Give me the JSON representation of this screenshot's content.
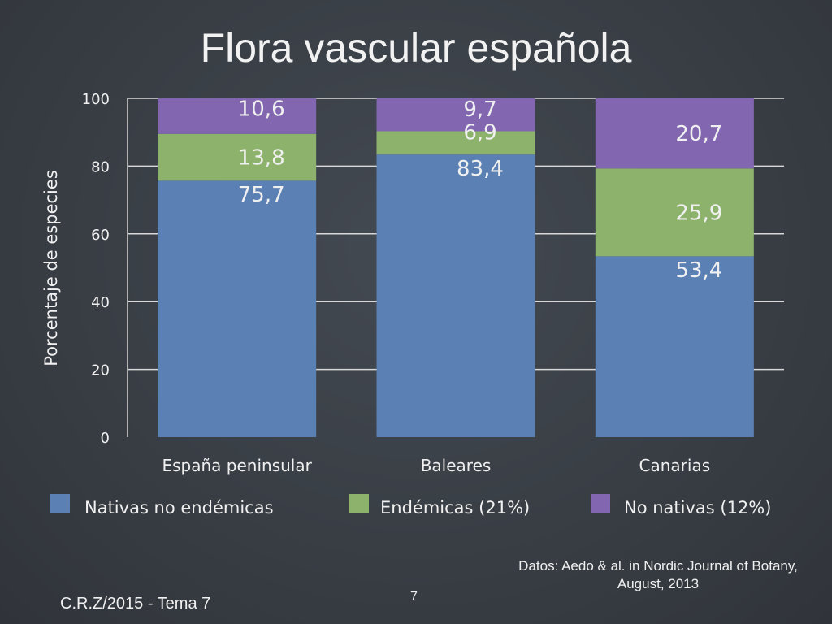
{
  "slide": {
    "title": "Flora vascular española",
    "footer_left": "C.R.Z/2015 - Tema 7",
    "page_number": "7",
    "source": "Datos: Aedo & al. in Nordic Journal of Botany, August, 2013"
  },
  "colors": {
    "nativas": "#5b80b4",
    "endemicas": "#8cb26c",
    "no_nativas": "#8267b0",
    "text": "#f0f0f0",
    "grid": "#d8d8d8"
  },
  "chart_data": {
    "type": "bar",
    "stacked": true,
    "title": "",
    "ylabel": "Porcentaje de especies",
    "xlabel": "",
    "ylim": [
      0,
      100
    ],
    "yticks": [
      0,
      20,
      40,
      60,
      80,
      100
    ],
    "grid": true,
    "legend_position": "bottom",
    "categories": [
      "España peninsular",
      "Baleares",
      "Canarias"
    ],
    "series": [
      {
        "name": "Nativas no endémicas",
        "color_key": "nativas",
        "values": [
          75.7,
          83.4,
          53.4
        ],
        "labels": [
          "75,7",
          "83,4",
          "53,4"
        ]
      },
      {
        "name": "Endémicas (21%)",
        "color_key": "endemicas",
        "values": [
          13.8,
          6.9,
          25.9
        ],
        "labels": [
          "13,8",
          "6,9",
          "25,9"
        ]
      },
      {
        "name": "No nativas (12%)",
        "color_key": "no_nativas",
        "values": [
          10.6,
          9.7,
          20.7
        ],
        "labels": [
          "10,6",
          "9,7",
          "20,7"
        ]
      }
    ]
  }
}
